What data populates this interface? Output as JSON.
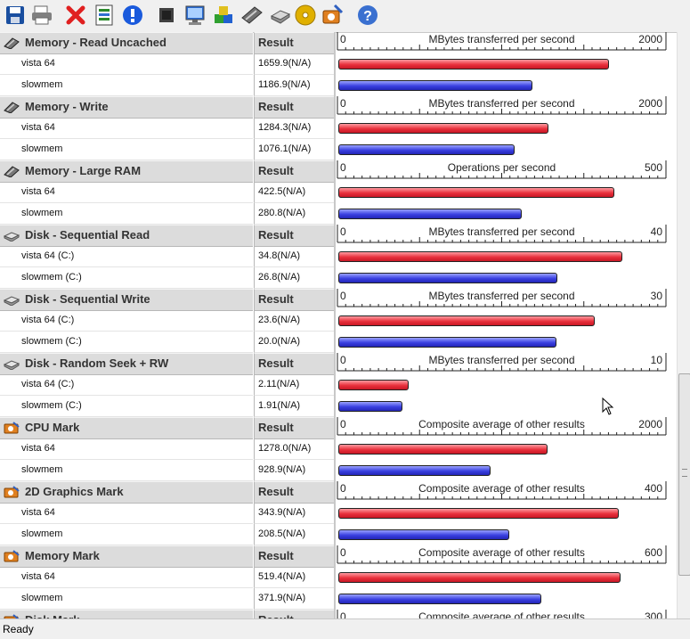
{
  "toolbar": {
    "buttons": [
      {
        "icon": "save-icon",
        "color": "#1a4fa0"
      },
      {
        "icon": "print-icon",
        "color": "#808080"
      },
      {
        "icon": "delete-icon",
        "color": "#e02020"
      },
      {
        "icon": "report-icon",
        "color": "#2a8a2a"
      },
      {
        "icon": "info-icon",
        "color": "#1a5adc"
      },
      {
        "icon": "cpu-icon",
        "color": "#404040"
      },
      {
        "icon": "monitor-icon",
        "color": "#2a6ad0"
      },
      {
        "icon": "graphics-3d-icon",
        "color": "#30a030"
      },
      {
        "icon": "memory-icon",
        "color": "#707070"
      },
      {
        "icon": "disk-icon",
        "color": "#909090"
      },
      {
        "icon": "cd-icon",
        "color": "#e0b000"
      },
      {
        "icon": "advanced-icon",
        "color": "#e08020"
      },
      {
        "icon": "help-icon",
        "color": "#3a70d0"
      }
    ]
  },
  "colors": {
    "series1": "#e8303c",
    "series2": "#3a40e0"
  },
  "result_header": "Result",
  "sections": [
    {
      "name": "Memory - Read Uncached",
      "icon": "memory-icon",
      "axis_min": "0",
      "axis_max": "2000",
      "max": 2000,
      "unit": "MBytes transferred per second",
      "rows": [
        {
          "system": "vista 64",
          "result": "1659.9(N/A)",
          "value": 1659.9,
          "series": "red"
        },
        {
          "system": "slowmem",
          "result": "1186.9(N/A)",
          "value": 1186.9,
          "series": "blue"
        }
      ]
    },
    {
      "name": "Memory - Write",
      "icon": "memory-icon",
      "axis_min": "0",
      "axis_max": "2000",
      "max": 2000,
      "unit": "MBytes transferred per second",
      "rows": [
        {
          "system": "vista 64",
          "result": "1284.3(N/A)",
          "value": 1284.3,
          "series": "red"
        },
        {
          "system": "slowmem",
          "result": "1076.1(N/A)",
          "value": 1076.1,
          "series": "blue"
        }
      ]
    },
    {
      "name": "Memory - Large RAM",
      "icon": "memory-icon",
      "axis_min": "0",
      "axis_max": "500",
      "max": 500,
      "unit": "Operations per second",
      "rows": [
        {
          "system": "vista 64",
          "result": "422.5(N/A)",
          "value": 422.5,
          "series": "red"
        },
        {
          "system": "slowmem",
          "result": "280.8(N/A)",
          "value": 280.8,
          "series": "blue"
        }
      ]
    },
    {
      "name": "Disk - Sequential Read",
      "icon": "disk-icon",
      "axis_min": "0",
      "axis_max": "40",
      "max": 40,
      "unit": "MBytes transferred per second",
      "rows": [
        {
          "system": "vista 64 (C:)",
          "result": "34.8(N/A)",
          "value": 34.8,
          "series": "red"
        },
        {
          "system": "slowmem (C:)",
          "result": "26.8(N/A)",
          "value": 26.8,
          "series": "blue"
        }
      ]
    },
    {
      "name": "Disk - Sequential Write",
      "icon": "disk-icon",
      "axis_min": "0",
      "axis_max": "30",
      "max": 30,
      "unit": "MBytes transferred per second",
      "rows": [
        {
          "system": "vista 64 (C:)",
          "result": "23.6(N/A)",
          "value": 23.6,
          "series": "red"
        },
        {
          "system": "slowmem (C:)",
          "result": "20.0(N/A)",
          "value": 20.0,
          "series": "blue"
        }
      ]
    },
    {
      "name": "Disk - Random Seek + RW",
      "icon": "disk-icon",
      "axis_min": "0",
      "axis_max": "10",
      "max": 10,
      "unit": "MBytes transferred per second",
      "rows": [
        {
          "system": "vista 64 (C:)",
          "result": "2.11(N/A)",
          "value": 2.11,
          "series": "red"
        },
        {
          "system": "slowmem (C:)",
          "result": "1.91(N/A)",
          "value": 1.91,
          "series": "blue"
        }
      ]
    },
    {
      "name": "CPU Mark",
      "icon": "mark-icon",
      "axis_min": "0",
      "axis_max": "2000",
      "max": 2000,
      "unit": "Composite average of other results",
      "rows": [
        {
          "system": "vista 64",
          "result": "1278.0(N/A)",
          "value": 1278.0,
          "series": "red"
        },
        {
          "system": "slowmem",
          "result": "928.9(N/A)",
          "value": 928.9,
          "series": "blue"
        }
      ]
    },
    {
      "name": "2D Graphics Mark",
      "icon": "mark-icon",
      "axis_min": "0",
      "axis_max": "400",
      "max": 400,
      "unit": "Composite average of other results",
      "rows": [
        {
          "system": "vista 64",
          "result": "343.9(N/A)",
          "value": 343.9,
          "series": "red"
        },
        {
          "system": "slowmem",
          "result": "208.5(N/A)",
          "value": 208.5,
          "series": "blue"
        }
      ]
    },
    {
      "name": "Memory Mark",
      "icon": "mark-icon",
      "axis_min": "0",
      "axis_max": "600",
      "max": 600,
      "unit": "Composite average of other results",
      "rows": [
        {
          "system": "vista 64",
          "result": "519.4(N/A)",
          "value": 519.4,
          "series": "red"
        },
        {
          "system": "slowmem",
          "result": "371.9(N/A)",
          "value": 371.9,
          "series": "blue"
        }
      ]
    },
    {
      "name": "Disk Mark",
      "icon": "mark-icon",
      "axis_min": "0",
      "axis_max": "300",
      "max": 300,
      "unit": "Composite average of other results",
      "rows": []
    }
  ],
  "status": {
    "text": "Ready"
  }
}
